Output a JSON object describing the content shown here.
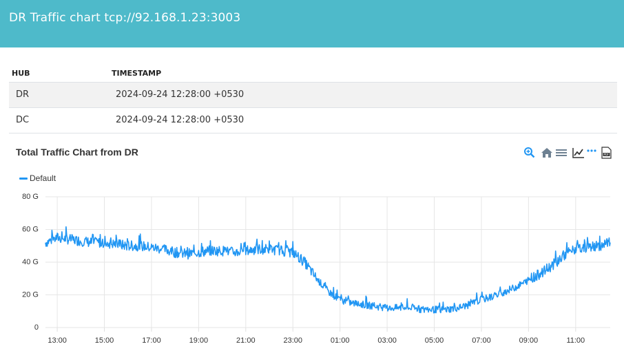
{
  "header": {
    "title": "DR Traffic chart tcp://92.168.1.23:3003"
  },
  "table": {
    "columns": [
      "HUB",
      "TIMESTAMP"
    ],
    "rows": [
      {
        "hub": "DR",
        "timestamp": "2024-09-24 12:28:00 +0530"
      },
      {
        "hub": "DC",
        "timestamp": "2024-09-24 12:28:00 +0530"
      }
    ]
  },
  "chart": {
    "title": "Total Traffic Chart from DR",
    "toolbar_icons": [
      "zoom-in-icon",
      "home-icon",
      "menu-icon",
      "line-chart-icon",
      "more-icon",
      "pdf-export-icon"
    ],
    "accent_color": "#2196f3"
  },
  "chart_data": {
    "type": "line",
    "title": "Total Traffic Chart from DR",
    "legend": [
      "Default"
    ],
    "legend_position": "top-left",
    "grid": true,
    "ylim": [
      0,
      80
    ],
    "y_ticks": [
      "0",
      "20 G",
      "40 G",
      "60 G",
      "80 G"
    ],
    "y_unit": "G",
    "x_ticks": [
      "13:00",
      "15:00",
      "17:00",
      "19:00",
      "21:00",
      "23:00",
      "01:00",
      "03:00",
      "05:00",
      "07:00",
      "09:00",
      "11:00"
    ],
    "series": [
      {
        "name": "Default",
        "color": "#2196f3",
        "x": [
          "12:30",
          "13:00",
          "13:30",
          "14:00",
          "14:30",
          "15:00",
          "15:30",
          "16:00",
          "16:30",
          "17:00",
          "17:30",
          "18:00",
          "18:30",
          "19:00",
          "19:30",
          "20:00",
          "20:30",
          "21:00",
          "21:30",
          "22:00",
          "22:30",
          "23:00",
          "23:30",
          "00:00",
          "00:30",
          "01:00",
          "01:30",
          "02:00",
          "02:30",
          "03:00",
          "03:30",
          "04:00",
          "04:30",
          "05:00",
          "05:30",
          "06:00",
          "06:30",
          "07:00",
          "07:30",
          "08:00",
          "08:30",
          "09:00",
          "09:30",
          "10:00",
          "10:30",
          "11:00",
          "11:30",
          "12:00",
          "12:28"
        ],
        "values": [
          52,
          55,
          54,
          53,
          52,
          52,
          51,
          50,
          50,
          49,
          48,
          46,
          45,
          46,
          47,
          47,
          46,
          47,
          48,
          48,
          47,
          46,
          40,
          30,
          22,
          17,
          15,
          14,
          13,
          12,
          12,
          12,
          11,
          11,
          11,
          12,
          14,
          17,
          19,
          22,
          25,
          29,
          33,
          38,
          44,
          48,
          49,
          50,
          52
        ]
      }
    ]
  }
}
